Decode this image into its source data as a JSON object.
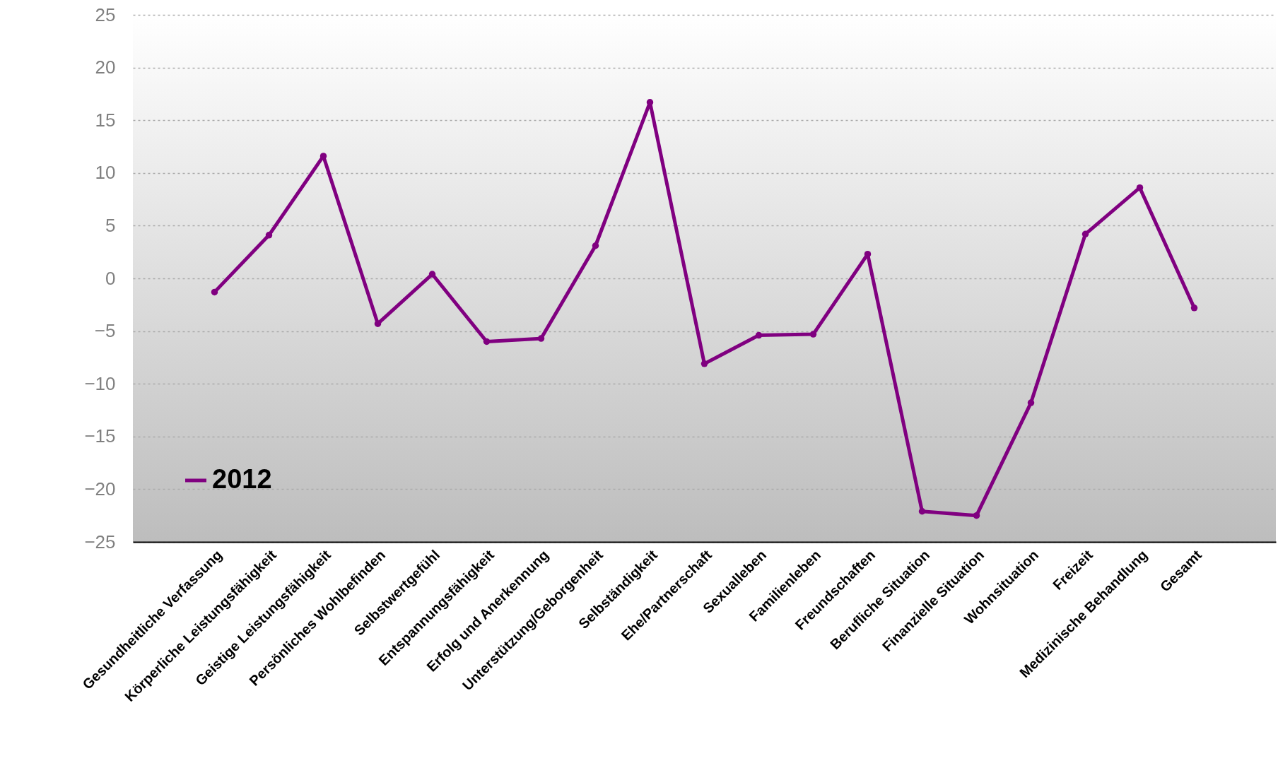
{
  "chart_data": {
    "type": "line",
    "categories": [
      "Gesundheitliche Verfassung",
      "Körperliche Leistungsfähigkeit",
      "Geistige Leistungsfähigkeit",
      "Persönliches Wohlbefinden",
      "Selbstwertgefühl",
      "Entspannungsfähigkeit",
      "Erfolg und Anerkennung",
      "Unterstützung/Geborgenheit",
      "Selbständigkeit",
      "Ehe/Partnerschaft",
      "Sexualleben",
      "Familienleben",
      "Freundschaften",
      "Berufliche Situation",
      "Finanzielle Situation",
      "Wohnsituation",
      "Freizeit",
      "Medizinische Behandlung",
      "Gesamt"
    ],
    "series": [
      {
        "name": "2012",
        "color": "#800080",
        "values": [
          -1.3,
          4.1,
          11.6,
          -4.3,
          0.4,
          -6.0,
          -5.7,
          3.1,
          16.7,
          -8.1,
          -5.4,
          -5.3,
          2.3,
          -22.1,
          -22.5,
          -11.8,
          4.2,
          8.6,
          -2.8
        ]
      }
    ],
    "ylim": [
      -25,
      25
    ],
    "yticks": [
      -25,
      -20,
      -15,
      -10,
      -5,
      0,
      5,
      10,
      15,
      20,
      25
    ],
    "grid": "y",
    "legend": "bottom left",
    "marker": "circle",
    "line_style": "solid"
  }
}
